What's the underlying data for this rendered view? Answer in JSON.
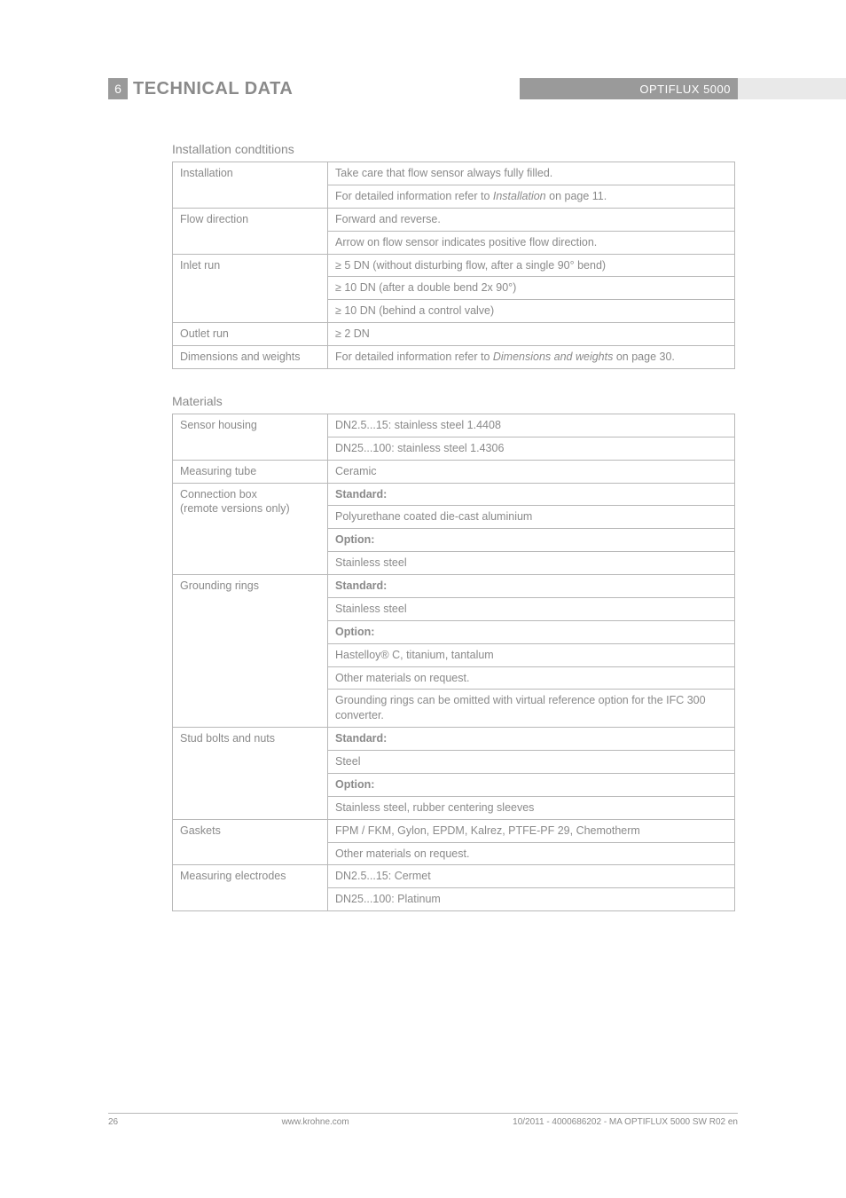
{
  "header": {
    "section_number": "6",
    "title": "TECHNICAL DATA",
    "product": "OPTIFLUX 5000"
  },
  "sections": {
    "installation": {
      "heading": "Installation condtitions",
      "rows": [
        {
          "label": "Installation",
          "span": 2,
          "values": [
            "Take care that flow sensor always fully filled.",
            "For detailed information refer to <span class='italic'>Installation</span> on page 11."
          ]
        },
        {
          "label": "Flow direction",
          "span": 2,
          "values": [
            "Forward and reverse.",
            "Arrow on flow sensor indicates positive flow direction."
          ]
        },
        {
          "label": "Inlet run",
          "span": 3,
          "values": [
            "≥ 5 DN (without disturbing flow, after a single 90° bend)",
            "≥ 10 DN (after a double bend 2x 90°)",
            "≥ 10 DN (behind a control valve)"
          ]
        },
        {
          "label": "Outlet run",
          "span": 1,
          "values": [
            "≥ 2 DN"
          ]
        },
        {
          "label": "Dimensions and weights",
          "span": 1,
          "values": [
            "For detailed information refer to <span class='italic'>Dimensions and weights</span> on page 30."
          ]
        }
      ]
    },
    "materials": {
      "heading": "Materials",
      "rows": [
        {
          "label": "Sensor housing",
          "span": 2,
          "values": [
            "DN2.5...15: stainless steel 1.4408",
            "DN25...100: stainless steel 1.4306"
          ]
        },
        {
          "label": "Measuring tube",
          "span": 1,
          "values": [
            "Ceramic"
          ]
        },
        {
          "label": "Connection box<br>(remote versions only)",
          "span": 4,
          "values": [
            "<span class='bold'>Standard:</span>",
            "Polyurethane coated die-cast aluminium",
            "<span class='bold'>Option:</span>",
            "Stainless steel"
          ]
        },
        {
          "label": "Grounding rings",
          "span": 6,
          "values": [
            "<span class='bold'>Standard:</span>",
            "Stainless steel",
            "<span class='bold'>Option:</span>",
            "Hastelloy&reg; C, titanium, tantalum",
            "Other materials on request.",
            "Grounding rings can be omitted with virtual reference option for the IFC 300 converter."
          ]
        },
        {
          "label": "Stud bolts and nuts",
          "span": 4,
          "values": [
            "<span class='bold'>Standard:</span>",
            "Steel",
            "<span class='bold'>Option:</span>",
            "Stainless steel, rubber centering sleeves"
          ]
        },
        {
          "label": "Gaskets",
          "span": 2,
          "values": [
            "FPM / FKM, Gylon, EPDM, Kalrez, PTFE-PF 29, Chemotherm",
            "Other materials on request."
          ]
        },
        {
          "label": "Measuring electrodes",
          "span": 2,
          "values": [
            "DN2.5...15: Cermet",
            "DN25...100: Platinum"
          ]
        }
      ]
    }
  },
  "footer": {
    "page": "26",
    "center": "www.krohne.com",
    "right": "10/2011 - 4000686202 - MA OPTIFLUX 5000 SW R02 en"
  }
}
